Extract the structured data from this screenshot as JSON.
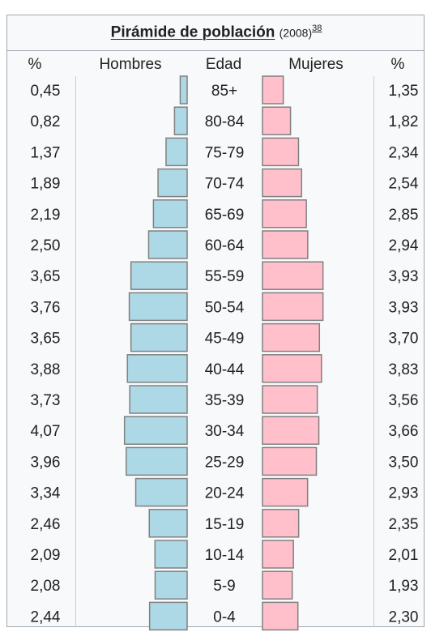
{
  "title": {
    "main": "Pirámide de población",
    "year": "(2008)",
    "ref": "38"
  },
  "headers": {
    "pct_left": "%",
    "hombres": "Hombres",
    "edad": "Edad",
    "mujeres": "Mujeres",
    "pct_right": "%"
  },
  "colors": {
    "hombres": "#add8e6",
    "mujeres": "#ffc0cb",
    "border": "#808080"
  },
  "chart_data": {
    "type": "bar",
    "categories": [
      "85+",
      "80-84",
      "75-79",
      "70-74",
      "65-69",
      "60-64",
      "55-59",
      "50-54",
      "45-49",
      "40-44",
      "35-39",
      "30-34",
      "25-29",
      "20-24",
      "15-19",
      "10-14",
      "5-9",
      "0-4"
    ],
    "series": [
      {
        "name": "Hombres",
        "values": [
          "0,45",
          "0,82",
          "1,37",
          "1,89",
          "2,19",
          "2,50",
          "3,65",
          "3,76",
          "3,65",
          "3,88",
          "3,73",
          "4,07",
          "3,96",
          "3,34",
          "2,46",
          "2,09",
          "2,08",
          "2,44"
        ]
      },
      {
        "name": "Mujeres",
        "values": [
          "1,35",
          "1,82",
          "2,34",
          "2,54",
          "2,85",
          "2,94",
          "3,93",
          "3,93",
          "3,70",
          "3,83",
          "3,56",
          "3,66",
          "3,50",
          "2,93",
          "2,35",
          "2,01",
          "1,93",
          "2,30"
        ]
      }
    ]
  }
}
